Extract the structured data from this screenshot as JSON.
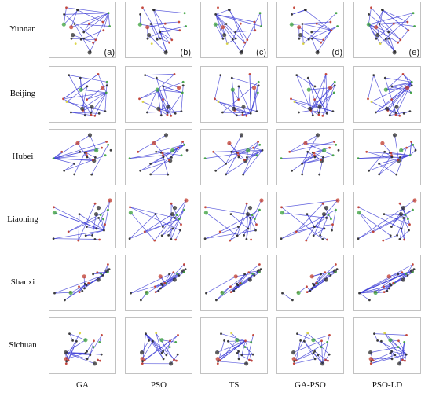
{
  "rows": [
    "Yunnan",
    "Beijing",
    "Hubei",
    "Liaoning",
    "Shanxi",
    "Sichuan"
  ],
  "columns": [
    "GA",
    "PSO",
    "TS",
    "GA-PSO",
    "PSO-LD"
  ],
  "panel_tags": [
    "(a)",
    "(b)",
    "(c)",
    "(d)",
    "(e)"
  ],
  "colors": {
    "route": "#3d3dd6",
    "frame": "#9a9a9a",
    "node_dark": "#2b2b2b",
    "node_red": "#c0392b",
    "node_green": "#3aa13a",
    "node_yellow": "#d8d23a"
  }
}
